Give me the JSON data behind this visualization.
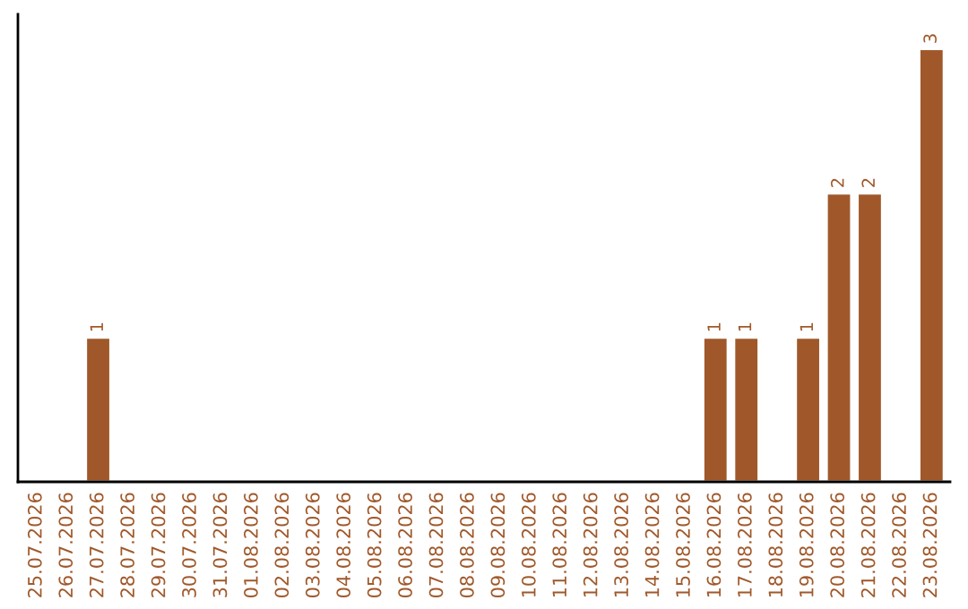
{
  "chart_data": {
    "type": "bar",
    "categories": [
      "25.07.2026",
      "26.07.2026",
      "27.07.2026",
      "28.07.2026",
      "29.07.2026",
      "30.07.2026",
      "31.07.2026",
      "01.08.2026",
      "02.08.2026",
      "03.08.2026",
      "04.08.2026",
      "05.08.2026",
      "06.08.2026",
      "07.08.2026",
      "08.08.2026",
      "09.08.2026",
      "10.08.2026",
      "11.08.2026",
      "12.08.2026",
      "13.08.2026",
      "14.08.2026",
      "15.08.2026",
      "16.08.2026",
      "17.08.2026",
      "18.08.2026",
      "19.08.2026",
      "20.08.2026",
      "21.08.2026",
      "22.08.2026",
      "23.08.2026"
    ],
    "values": [
      0,
      0,
      1,
      0,
      0,
      0,
      0,
      0,
      0,
      0,
      0,
      0,
      0,
      0,
      0,
      0,
      0,
      0,
      0,
      0,
      0,
      0,
      1,
      1,
      0,
      1,
      2,
      2,
      0,
      3
    ],
    "value_labels": [
      null,
      null,
      "1",
      null,
      null,
      null,
      null,
      null,
      null,
      null,
      null,
      null,
      null,
      null,
      null,
      null,
      null,
      null,
      null,
      null,
      null,
      null,
      "1",
      "1",
      null,
      "1",
      "2",
      "2",
      null,
      "3"
    ],
    "color": "#a0582a",
    "grid": false,
    "legend": false
  }
}
